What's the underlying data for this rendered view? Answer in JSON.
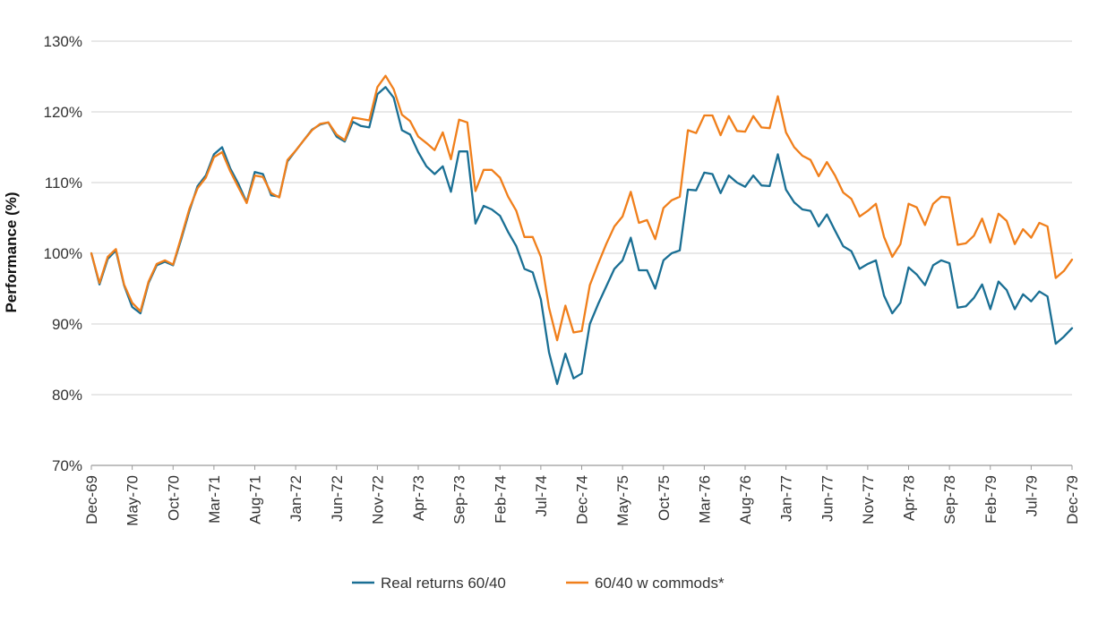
{
  "chart_data": {
    "type": "line",
    "title": "",
    "xlabel": "",
    "ylabel": "Performance (%)",
    "ylim": [
      70,
      130
    ],
    "yticks": [
      "70%",
      "80%",
      "90%",
      "100%",
      "110%",
      "120%",
      "130%"
    ],
    "grid": "horizontal",
    "legend_position": "bottom-center",
    "x_start": "Dec-69",
    "x_end": "Dec-79",
    "xtick_labels": [
      "Dec-69",
      "May-70",
      "Oct-70",
      "Mar-71",
      "Aug-71",
      "Jan-72",
      "Jun-72",
      "Nov-72",
      "Apr-73",
      "Sep-73",
      "Feb-74",
      "Jul-74",
      "Dec-74",
      "May-75",
      "Oct-75",
      "Mar-76",
      "Aug-76",
      "Jan-77",
      "Jun-77",
      "Nov-77",
      "Apr-78",
      "Sep-78",
      "Feb-79",
      "Jul-79",
      "Dec-79"
    ],
    "series": [
      {
        "name": "Real returns 60/40",
        "color": "#1a6f94",
        "values": [
          100,
          95.6,
          99.2,
          100.4,
          95.5,
          92.4,
          91.5,
          95.8,
          98.3,
          98.8,
          98.3,
          102,
          106,
          109.5,
          111,
          114,
          115,
          112,
          109.8,
          107.2,
          111.5,
          111.2,
          108.2,
          108,
          113,
          114.5,
          116,
          117.5,
          118.2,
          118.5,
          116.5,
          115.8,
          118.6,
          118,
          117.8,
          122.5,
          123.5,
          122,
          117.4,
          116.8,
          114.3,
          112.3,
          111.2,
          112.3,
          108.7,
          114.4,
          114.4,
          104.2,
          106.7,
          106.2,
          105.3,
          103,
          101,
          97.8,
          97.3,
          93.5,
          86,
          81.5,
          85.8,
          82.3,
          83,
          90,
          92.8,
          95.3,
          97.8,
          99,
          102.2,
          97.6,
          97.6,
          95,
          99,
          100,
          100.4,
          109,
          108.9,
          111.4,
          111.2,
          108.5,
          111,
          110,
          109.4,
          111,
          109.6,
          109.5,
          114,
          109,
          107.2,
          106.2,
          106,
          103.8,
          105.5,
          103.2,
          101,
          100.3,
          97.8,
          98.5,
          99,
          94,
          91.5,
          93,
          98,
          97,
          95.5,
          98.3,
          99,
          98.6,
          92.3,
          92.5,
          93.7,
          95.6,
          92.1,
          96,
          94.8,
          92.1,
          94.2,
          93.2,
          94.6,
          93.9,
          87.2,
          88.2,
          89.4
        ]
      },
      {
        "name": "60/40 w commods*",
        "color": "#f07f1b",
        "values": [
          100,
          95.8,
          99.5,
          100.6,
          95.6,
          93,
          91.8,
          96,
          98.5,
          99,
          98.4,
          102.3,
          106.3,
          109.2,
          110.7,
          113.6,
          114.3,
          111.6,
          109.3,
          107.1,
          111,
          110.8,
          108.5,
          107.9,
          113.2,
          114.5,
          116,
          117.4,
          118.3,
          118.5,
          116.8,
          116,
          119.2,
          119,
          118.8,
          123.5,
          125.1,
          123.2,
          119.6,
          118.7,
          116.5,
          115.6,
          114.6,
          117.1,
          113.3,
          118.9,
          118.5,
          108.8,
          111.8,
          111.8,
          110.7,
          108,
          106,
          102.3,
          102.3,
          99.5,
          92.3,
          87.7,
          92.6,
          88.8,
          89,
          95.5,
          98.5,
          101.3,
          103.8,
          105.2,
          108.7,
          104.3,
          104.7,
          102,
          106.4,
          107.5,
          108,
          117.4,
          117,
          119.5,
          119.5,
          116.7,
          119.4,
          117.3,
          117.2,
          119.4,
          117.8,
          117.7,
          122.2,
          117.1,
          115,
          113.8,
          113.2,
          110.9,
          112.9,
          111,
          108.6,
          107.7,
          105.2,
          106,
          107,
          102.3,
          99.5,
          101.3,
          107,
          106.5,
          104,
          107,
          108,
          107.9,
          101.2,
          101.4,
          102.5,
          104.9,
          101.5,
          105.6,
          104.6,
          101.3,
          103.4,
          102.2,
          104.3,
          103.8,
          96.5,
          97.5,
          99.1
        ]
      }
    ]
  }
}
